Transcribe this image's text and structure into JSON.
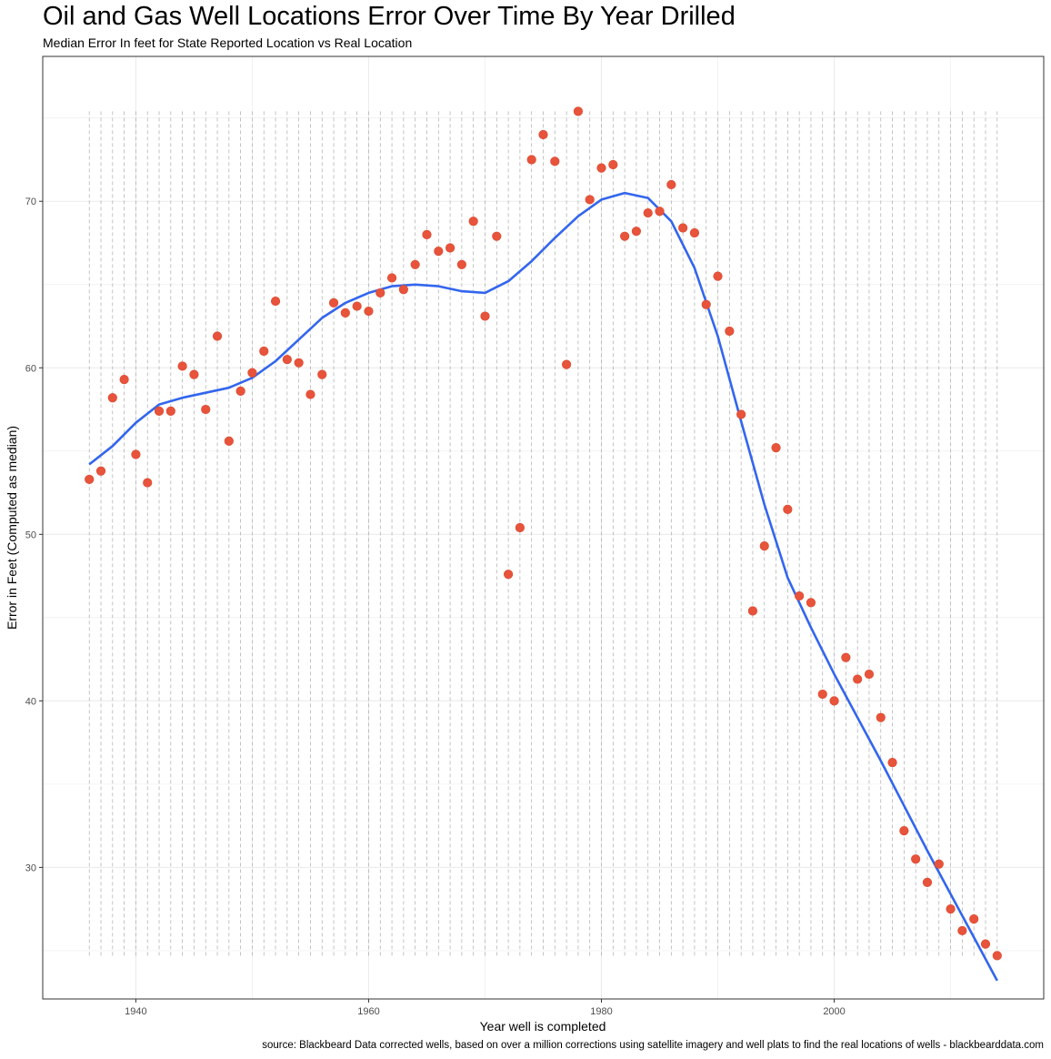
{
  "title": "Oil and Gas Well Locations Error Over Time By Year Drilled",
  "subtitle": "Median Error In feet for State Reported Location vs Real Location",
  "caption": "source: Blackbeard Data corrected wells, based on over a million corrections using satellite imagery and well plats to find the real locations of wells - blackbearddata.com",
  "colors": {
    "points": "#e8533b",
    "smooth": "#3366ee",
    "vlines": "#aaaaaa",
    "grid": "#ebebeb",
    "border": "#333333"
  },
  "chart_data": {
    "type": "scatter",
    "xlabel": "Year well is completed",
    "ylabel": "Error in Feet (Computed as median)",
    "xlim": [
      1932,
      2018
    ],
    "ylim": [
      22.1,
      78.7
    ],
    "xticks": [
      1940,
      1960,
      1980,
      2000
    ],
    "yticks": [
      30,
      40,
      50,
      60,
      70
    ],
    "grid": true,
    "legend": "none",
    "vline_range": [
      24.7,
      75.4
    ],
    "points": {
      "x": [
        1936,
        1937,
        1938,
        1939,
        1940,
        1941,
        1942,
        1943,
        1944,
        1945,
        1946,
        1947,
        1948,
        1949,
        1950,
        1951,
        1952,
        1953,
        1954,
        1955,
        1956,
        1957,
        1958,
        1959,
        1960,
        1961,
        1962,
        1963,
        1964,
        1965,
        1966,
        1967,
        1968,
        1969,
        1970,
        1971,
        1972,
        1973,
        1974,
        1975,
        1976,
        1977,
        1978,
        1979,
        1980,
        1981,
        1982,
        1983,
        1984,
        1985,
        1986,
        1987,
        1988,
        1989,
        1990,
        1991,
        1992,
        1993,
        1994,
        1995,
        1996,
        1997,
        1998,
        1999,
        2000,
        2001,
        2002,
        2003,
        2004,
        2005,
        2006,
        2007,
        2008,
        2009,
        2010,
        2011,
        2012,
        2013,
        2014
      ],
      "y": [
        53.3,
        53.8,
        58.2,
        59.3,
        54.8,
        53.1,
        57.4,
        57.4,
        60.1,
        59.6,
        57.5,
        61.9,
        55.6,
        58.6,
        59.7,
        61.0,
        64.0,
        60.5,
        60.3,
        58.4,
        59.6,
        63.9,
        63.3,
        63.7,
        63.4,
        64.5,
        65.4,
        64.7,
        66.2,
        68.0,
        67.0,
        67.2,
        66.2,
        68.8,
        63.1,
        67.9,
        47.6,
        50.4,
        72.5,
        74.0,
        72.4,
        60.2,
        75.4,
        70.1,
        72.0,
        72.2,
        67.9,
        68.2,
        69.3,
        69.4,
        71.0,
        68.4,
        68.1,
        63.8,
        65.5,
        62.2,
        57.2,
        45.4,
        49.3,
        55.2,
        51.5,
        46.3,
        45.9,
        40.4,
        40.0,
        42.6,
        41.3,
        41.6,
        39.0,
        36.3,
        32.2,
        30.5,
        29.1,
        30.2,
        27.5,
        26.2,
        26.9,
        25.4,
        24.7
      ]
    },
    "smooth": {
      "x": [
        1936,
        1938,
        1940,
        1942,
        1944,
        1946,
        1948,
        1950,
        1952,
        1954,
        1956,
        1958,
        1960,
        1962,
        1964,
        1966,
        1968,
        1970,
        1972,
        1974,
        1976,
        1978,
        1980,
        1982,
        1984,
        1986,
        1988,
        1990,
        1992,
        1994,
        1996,
        1998,
        2000,
        2002,
        2004,
        2006,
        2008,
        2010,
        2012,
        2014
      ],
      "y": [
        54.2,
        55.3,
        56.7,
        57.8,
        58.2,
        58.5,
        58.8,
        59.4,
        60.4,
        61.7,
        63.0,
        63.9,
        64.5,
        64.9,
        65.0,
        64.9,
        64.6,
        64.5,
        65.2,
        66.4,
        67.8,
        69.1,
        70.1,
        70.5,
        70.2,
        68.8,
        66.0,
        61.9,
        56.8,
        51.8,
        47.4,
        44.4,
        41.6,
        39.0,
        36.4,
        33.7,
        31.0,
        28.4,
        25.8,
        23.2
      ]
    }
  }
}
